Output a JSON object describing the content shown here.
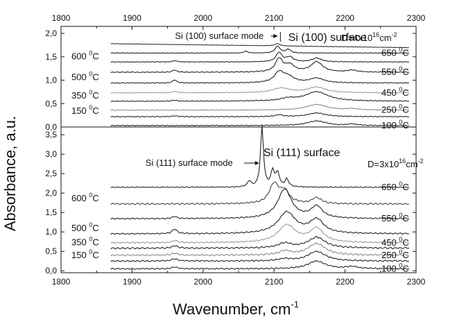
{
  "chart_data": [
    {
      "id": "si100",
      "type": "line",
      "title": "Si (100) surface",
      "dose_label": {
        "base": "D=4x10",
        "sup": "16",
        "mid": "cm",
        "sup2": "-2"
      },
      "annotation": "Si (100) surface mode",
      "annotation_x": 2107,
      "xlim": [
        1800,
        2300
      ],
      "ylim": [
        0.0,
        2.15
      ],
      "yticks": [
        "0,0",
        "0,5",
        "1,0",
        "1,5",
        "2,0"
      ],
      "ytick_values": [
        0,
        0.5,
        1.0,
        1.5,
        2.0
      ],
      "xticks": [
        1800,
        1900,
        2000,
        2100,
        2200,
        2300
      ],
      "x_range": [
        1870,
        2290
      ],
      "series": [
        {
          "name": "100",
          "offset": 0.03,
          "color": "#222222",
          "noise": 0.006,
          "peaks": [
            [
              2160,
              0.1,
              16
            ],
            [
              2210,
              0.03,
              8
            ]
          ],
          "slope": 0.0
        },
        {
          "name": "150",
          "offset": 0.22,
          "color": "#222222",
          "noise": 0.006,
          "peaks": [
            [
              2107,
              0.04,
              6
            ],
            [
              2160,
              0.08,
              15
            ],
            [
              1960,
              0.02,
              4
            ]
          ],
          "slope": 0.0
        },
        {
          "name": "250",
          "offset": 0.36,
          "color": "#8a8a8a",
          "noise": 0.006,
          "peaks": [
            [
              2160,
              0.12,
              18
            ],
            [
              2210,
              0.03,
              8
            ]
          ],
          "slope": 0.0
        },
        {
          "name": "350",
          "offset": 0.55,
          "color": "#222222",
          "noise": 0.006,
          "peaks": [
            [
              2160,
              0.2,
              20
            ],
            [
              2120,
              0.05,
              12
            ],
            [
              1960,
              0.02,
              4
            ]
          ],
          "slope": 0.0
        },
        {
          "name": "450",
          "offset": 0.73,
          "color": "#9a9a9a",
          "noise": 0.006,
          "peaks": [
            [
              2110,
              0.1,
              15
            ],
            [
              2160,
              0.12,
              15
            ],
            [
              1960,
              0.03,
              4
            ]
          ],
          "slope": 0.0
        },
        {
          "name": "500",
          "offset": 0.94,
          "color": "#222222",
          "noise": 0.006,
          "peaks": [
            [
              2107,
              0.22,
              8
            ],
            [
              2120,
              0.12,
              10
            ],
            [
              2160,
              0.1,
              12
            ],
            [
              1960,
              0.07,
              3
            ]
          ],
          "slope": 0.0
        },
        {
          "name": "550",
          "offset": 1.17,
          "color": "#222222",
          "noise": 0.006,
          "peaks": [
            [
              2107,
              0.28,
              6
            ],
            [
              2122,
              0.15,
              8
            ],
            [
              2160,
              0.22,
              10
            ],
            [
              2210,
              0.04,
              8
            ],
            [
              1960,
              0.05,
              3
            ]
          ],
          "slope": 0.0
        },
        {
          "name": "600",
          "offset": 1.39,
          "color": "#222222",
          "noise": 0.005,
          "peaks": [
            [
              2107,
              0.2,
              5
            ],
            [
              2122,
              0.1,
              6
            ],
            [
              2160,
              0.08,
              8
            ],
            [
              1960,
              0.03,
              3
            ]
          ],
          "slope": 0.0
        },
        {
          "name": "650",
          "offset": 1.58,
          "color": "#222222",
          "noise": 0.004,
          "peaks": [
            [
              2105,
              0.15,
              4
            ],
            [
              2120,
              0.08,
              4
            ],
            [
              2060,
              0.04,
              3
            ]
          ],
          "slope": 0.0
        },
        {
          "name": "",
          "offset": 1.78,
          "color": "#333333",
          "noise": 0.003,
          "peaks": [
            [
              2105,
              0.05,
              4
            ]
          ],
          "slope": -0.0002
        }
      ],
      "left_labels": [
        {
          "text": "150",
          "series": 1
        },
        {
          "text": "350",
          "series": 3
        },
        {
          "text": "500",
          "series": 5
        },
        {
          "text": "600",
          "series": 7
        }
      ],
      "right_labels": [
        {
          "text": "100",
          "series": 0
        },
        {
          "text": "250",
          "series": 2
        },
        {
          "text": "450",
          "series": 4
        },
        {
          "text": "550",
          "series": 6
        },
        {
          "text": "650",
          "series": 8
        }
      ]
    },
    {
      "id": "si111",
      "type": "line",
      "title": "Si (111) surface",
      "dose_label": {
        "base": "D=3x10",
        "sup": "16",
        "mid": "cm",
        "sup2": "-2"
      },
      "annotation": "Si (111) surface mode",
      "annotation_x": 2083,
      "xlim": [
        1800,
        2300
      ],
      "ylim": [
        -0.05,
        3.7
      ],
      "yticks": [
        "0,0",
        "0,5",
        "1,0",
        "1,5",
        "2,0",
        "2,5",
        "3,0",
        "3,5"
      ],
      "ytick_values": [
        0,
        0.5,
        1.0,
        1.5,
        2.0,
        2.5,
        3.0,
        3.5
      ],
      "xticks": [
        1800,
        1900,
        2000,
        2100,
        2200,
        2300
      ],
      "x_range": [
        1870,
        2290
      ],
      "series": [
        {
          "name": "100",
          "offset": 0.05,
          "color": "#222222",
          "noise": 0.012,
          "peaks": [
            [
              2160,
              0.2,
              15
            ],
            [
              2210,
              0.05,
              10
            ],
            [
              1960,
              0.05,
              5
            ]
          ],
          "slope": 0.0
        },
        {
          "name": "150",
          "offset": 0.25,
          "color": "#222222",
          "noise": 0.012,
          "peaks": [
            [
              2160,
              0.25,
              15
            ],
            [
              2115,
              0.05,
              10
            ],
            [
              1960,
              0.06,
              5
            ]
          ],
          "slope": 0.0
        },
        {
          "name": "250",
          "offset": 0.4,
          "color": "#888888",
          "noise": 0.015,
          "peaks": [
            [
              2160,
              0.3,
              15
            ],
            [
              2115,
              0.1,
              10
            ],
            [
              1960,
              0.05,
              5
            ]
          ],
          "slope": 0.0
        },
        {
          "name": "350",
          "offset": 0.58,
          "color": "#222222",
          "noise": 0.015,
          "peaks": [
            [
              2160,
              0.28,
              15
            ],
            [
              2115,
              0.12,
              12
            ],
            [
              1960,
              0.06,
              5
            ]
          ],
          "slope": 0.0
        },
        {
          "name": "450",
          "offset": 0.72,
          "color": "#999999",
          "noise": 0.012,
          "peaks": [
            [
              2118,
              0.45,
              15
            ],
            [
              2160,
              0.35,
              12
            ],
            [
              1960,
              0.05,
              5
            ]
          ],
          "slope": 0.0
        },
        {
          "name": "500",
          "offset": 0.95,
          "color": "#222222",
          "noise": 0.012,
          "peaks": [
            [
              2118,
              0.55,
              15
            ],
            [
              2160,
              0.35,
              12
            ],
            [
              1960,
              0.12,
              4
            ]
          ],
          "slope": 0.0
        },
        {
          "name": "550",
          "offset": 1.34,
          "color": "#222222",
          "noise": 0.012,
          "peaks": [
            [
              2115,
              0.75,
              12
            ],
            [
              2160,
              0.3,
              10
            ],
            [
              1960,
              0.05,
              4
            ]
          ],
          "slope": 0.0
        },
        {
          "name": "600",
          "offset": 1.72,
          "color": "#444444",
          "noise": 0.015,
          "peaks": [
            [
              2100,
              0.5,
              8
            ],
            [
              2115,
              0.3,
              8
            ],
            [
              2160,
              0.15,
              8
            ]
          ],
          "slope": 0.0
        },
        {
          "name": "650",
          "offset": 2.15,
          "color": "#222222",
          "noise": 0.008,
          "peaks": [
            [
              2083,
              1.55,
              2.5
            ],
            [
              2098,
              0.4,
              3
            ],
            [
              2105,
              0.35,
              3
            ],
            [
              2118,
              0.2,
              3
            ],
            [
              2065,
              0.15,
              3
            ]
          ],
          "slope": 0.0
        }
      ],
      "left_labels": [
        {
          "text": "150",
          "series": 1
        },
        {
          "text": "350",
          "series": 3
        },
        {
          "text": "500",
          "series": 5
        },
        {
          "text": "600",
          "series": 7
        }
      ],
      "right_labels": [
        {
          "text": "100",
          "series": 0
        },
        {
          "text": "250",
          "series": 2
        },
        {
          "text": "450",
          "series": 4
        },
        {
          "text": "550",
          "series": 6
        },
        {
          "text": "650",
          "series": 8
        }
      ]
    }
  ],
  "axes": {
    "xlabel": "Wavenumber, cm",
    "xlabel_sup": "-1",
    "ylabel": "Absorbance, a.u.",
    "temp_unit": "C",
    "temp_degree": "0"
  }
}
